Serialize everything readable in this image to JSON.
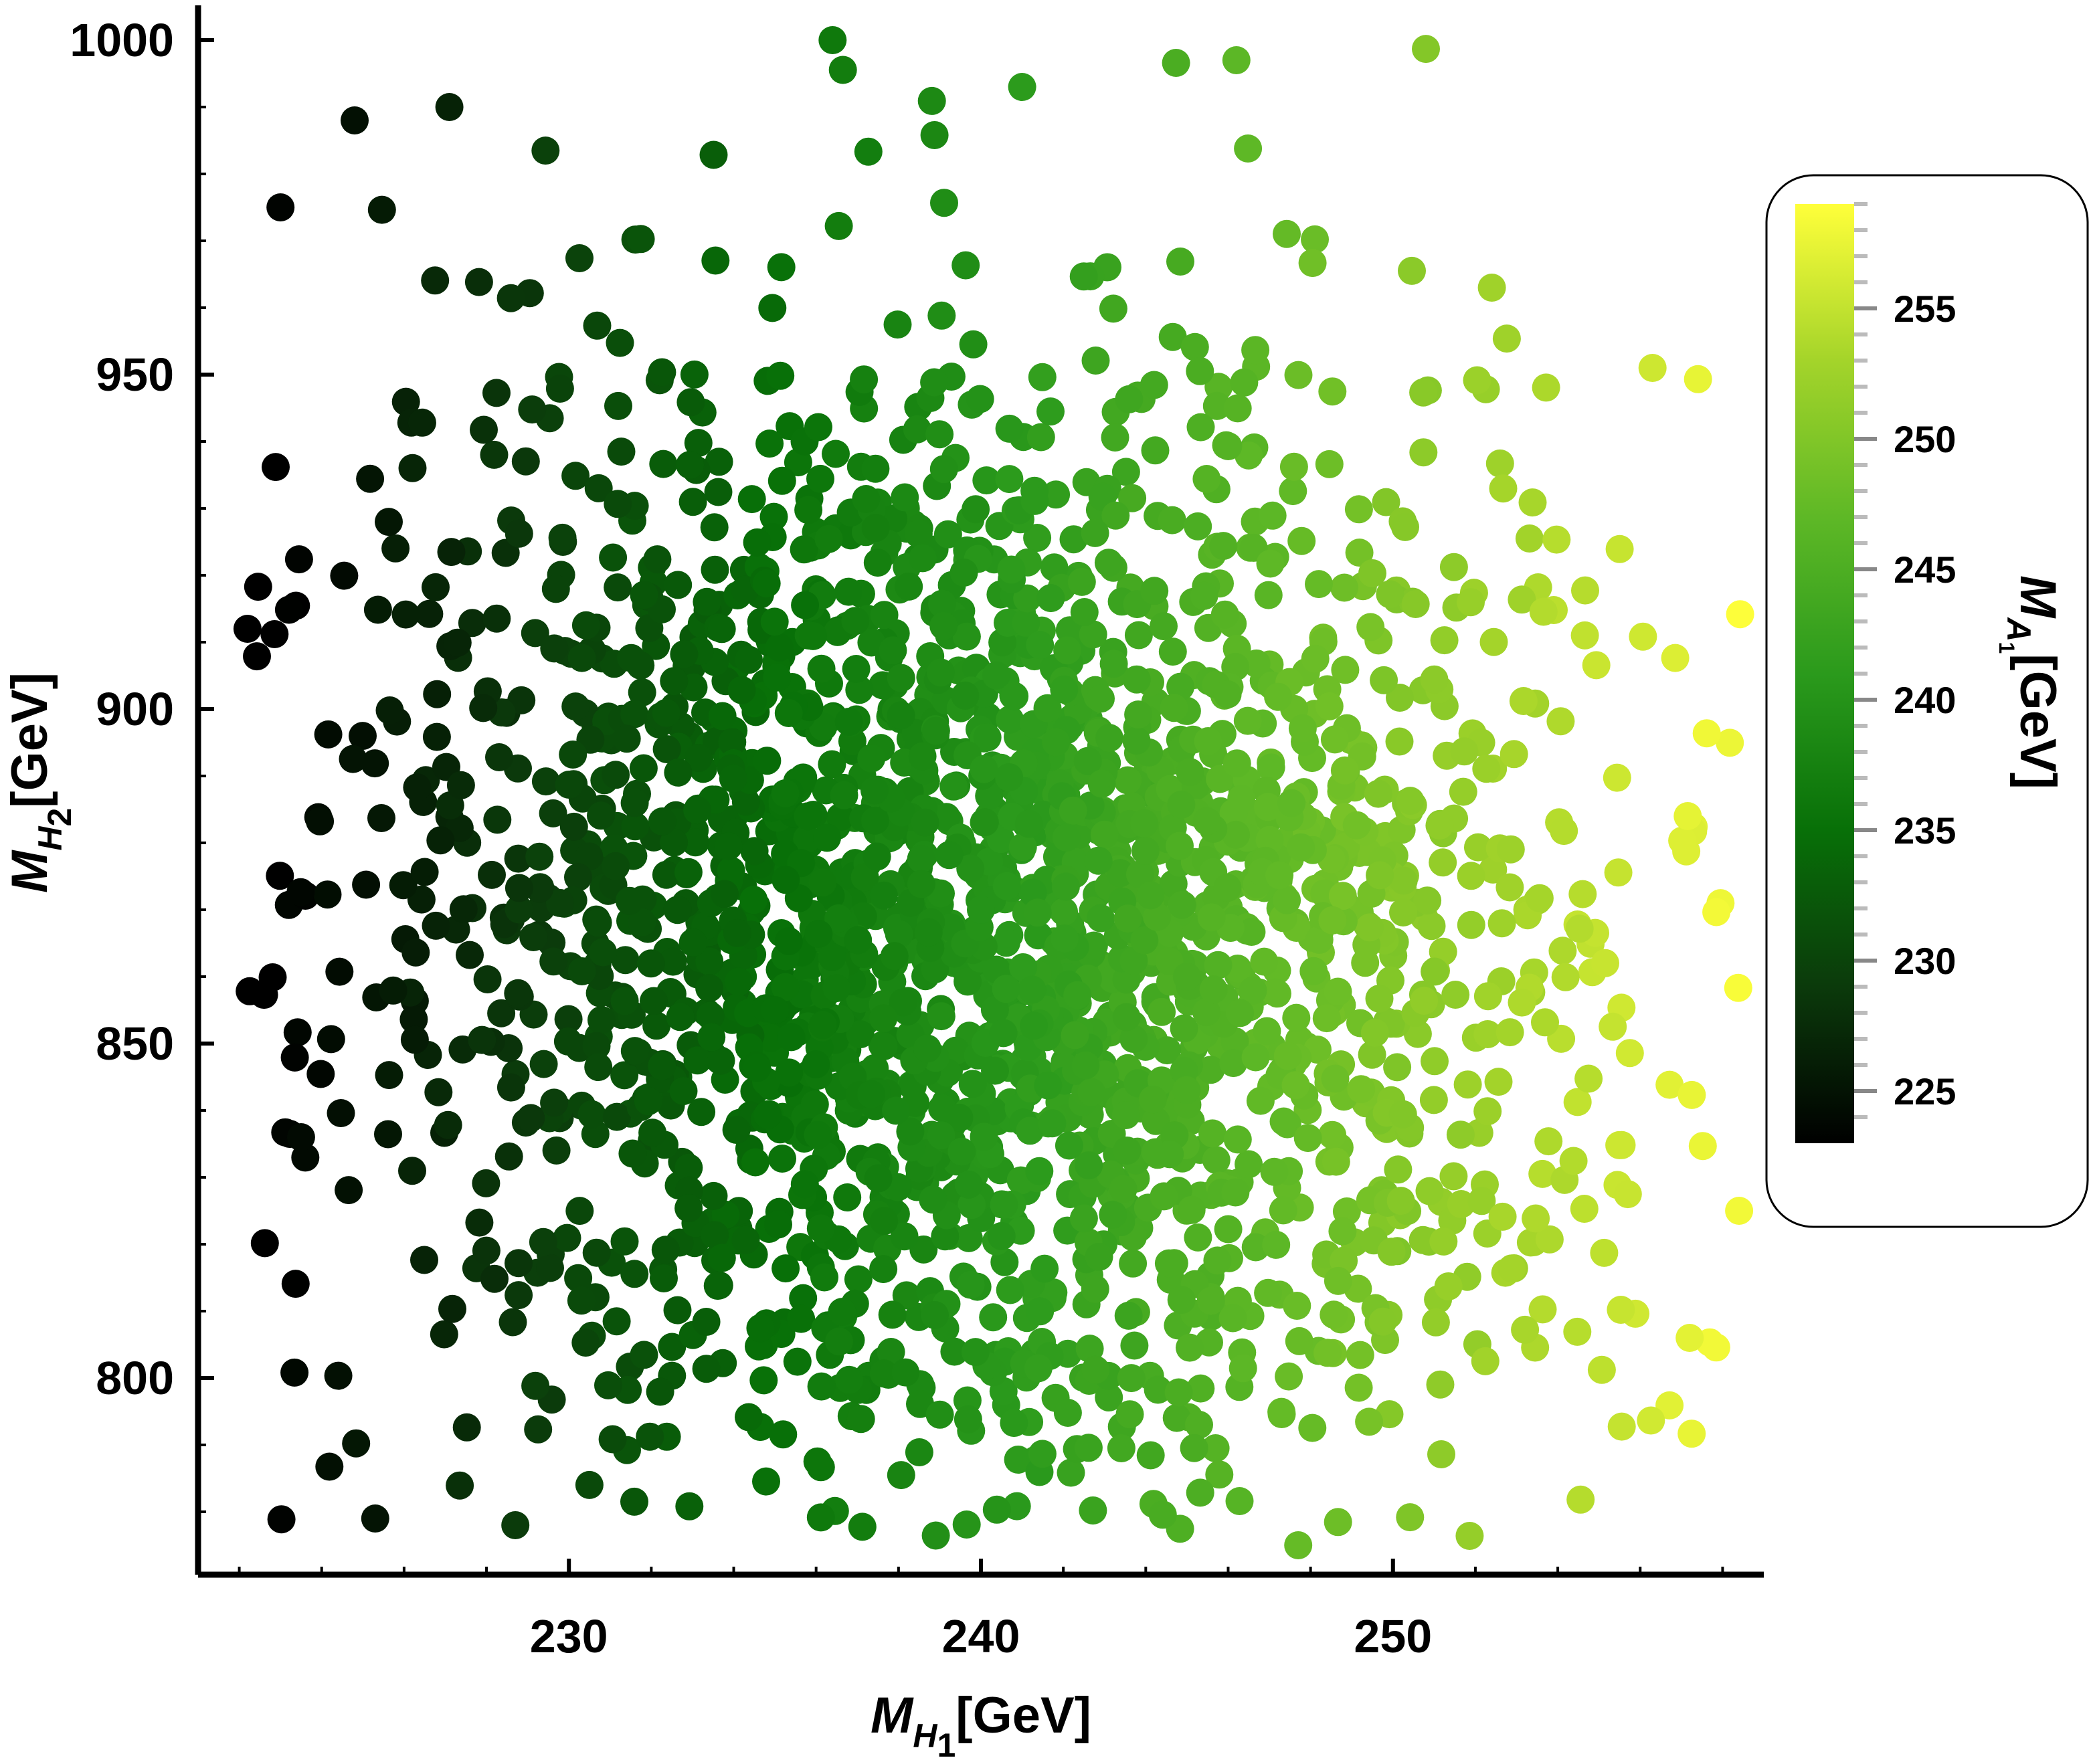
{
  "chart_data": {
    "type": "scatter",
    "title": "",
    "xlabel": {
      "base": "M",
      "sub": "H",
      "subsub": "1",
      "unit": "[GeV]"
    },
    "ylabel": {
      "base": "M",
      "sub": "H",
      "subsub": "2",
      "unit": "[GeV]"
    },
    "xlim": [
      221,
      259
    ],
    "ylim": [
      770,
      1000
    ],
    "x_ticks": [
      230,
      240,
      250
    ],
    "y_ticks": [
      800,
      850,
      900,
      950,
      1000
    ],
    "grid": false,
    "colorbar": {
      "label": {
        "base": "M",
        "sub": "A",
        "subsub": "1",
        "unit": "[GeV]"
      },
      "range": [
        223,
        259
      ],
      "ticks": [
        225,
        230,
        235,
        240,
        245,
        250,
        255
      ],
      "colors": [
        "#000000",
        "#0b3a0b",
        "#087008",
        "#2b9a1c",
        "#5eb826",
        "#a4d42a",
        "#ffff3a"
      ]
    },
    "color_variable": "M_A1 correlates with M_H1",
    "n_points": 2400,
    "points_sample": [
      {
        "x": 223.0,
        "y": 975
      },
      {
        "x": 224.8,
        "y": 988
      },
      {
        "x": 227.1,
        "y": 990
      },
      {
        "x": 236.4,
        "y": 1000
      },
      {
        "x": 246.2,
        "y": 997
      },
      {
        "x": 241.0,
        "y": 993
      },
      {
        "x": 252.4,
        "y": 963
      },
      {
        "x": 256.3,
        "y": 951
      },
      {
        "x": 258.4,
        "y": 825
      },
      {
        "x": 257.2,
        "y": 806
      },
      {
        "x": 247.7,
        "y": 775
      },
      {
        "x": 228.7,
        "y": 778
      },
      {
        "x": 225.3,
        "y": 779
      },
      {
        "x": 223.5,
        "y": 836
      },
      {
        "x": 222.2,
        "y": 912
      },
      {
        "x": 240.0,
        "y": 870
      },
      {
        "x": 235.0,
        "y": 855
      },
      {
        "x": 245.0,
        "y": 860
      }
    ]
  }
}
